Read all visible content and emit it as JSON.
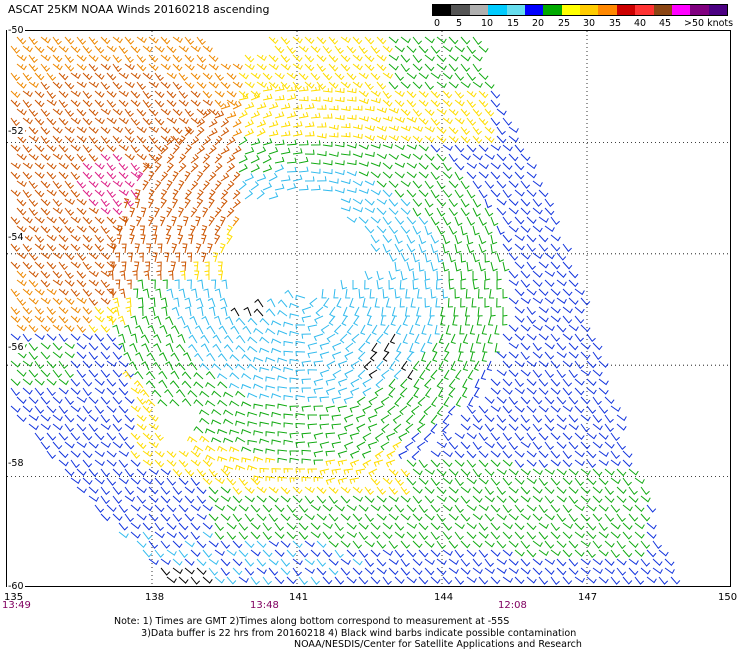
{
  "title": "ASCAT 25KM NOAA Winds 20160218 ascending",
  "legend": {
    "labels": [
      "0",
      "5",
      "10",
      "15",
      "20",
      "25",
      "30",
      "35",
      "40",
      "45",
      ">50 knots"
    ],
    "colors": [
      "#000000",
      "#555555",
      "#b0b0b0",
      "#00ccff",
      "#66ddee",
      "#0000ff",
      "#00aa00",
      "#ffff00",
      "#ffcc00",
      "#ff8800",
      "#cc0000",
      "#ff3333",
      "#8b4513",
      "#ff00ff",
      "#800080",
      "#4b0082"
    ]
  },
  "map": {
    "lat_labels": [
      "-50",
      "-52",
      "-54",
      "-56",
      "-58",
      "-60"
    ],
    "lon_labels": [
      "135",
      "138",
      "141",
      "144",
      "147",
      "150"
    ],
    "time_labels": [
      "13:49",
      "13:48",
      "12:08"
    ],
    "lat_range": [
      -60,
      -50
    ],
    "lon_range": [
      135,
      150
    ],
    "grid": true,
    "wind_field_colors": {
      "yellow": "#ffdd00",
      "orange": "#ee8800",
      "dark_orange": "#cc5500",
      "magenta": "#dd2288",
      "green": "#11aa11",
      "blue": "#1133dd",
      "cyan": "#33bbee",
      "black": "#000000"
    }
  },
  "notes": {
    "line1": "Note: 1) Times are GMT 2)Times along bottom correspond to measurement at -55S",
    "line2": "         3)Data buffer is 22 hrs from 20160218 4) Black wind barbs indicate possible contamination",
    "line3": "NOAA/NESDIS/Center for Satellite Applications and Research"
  }
}
